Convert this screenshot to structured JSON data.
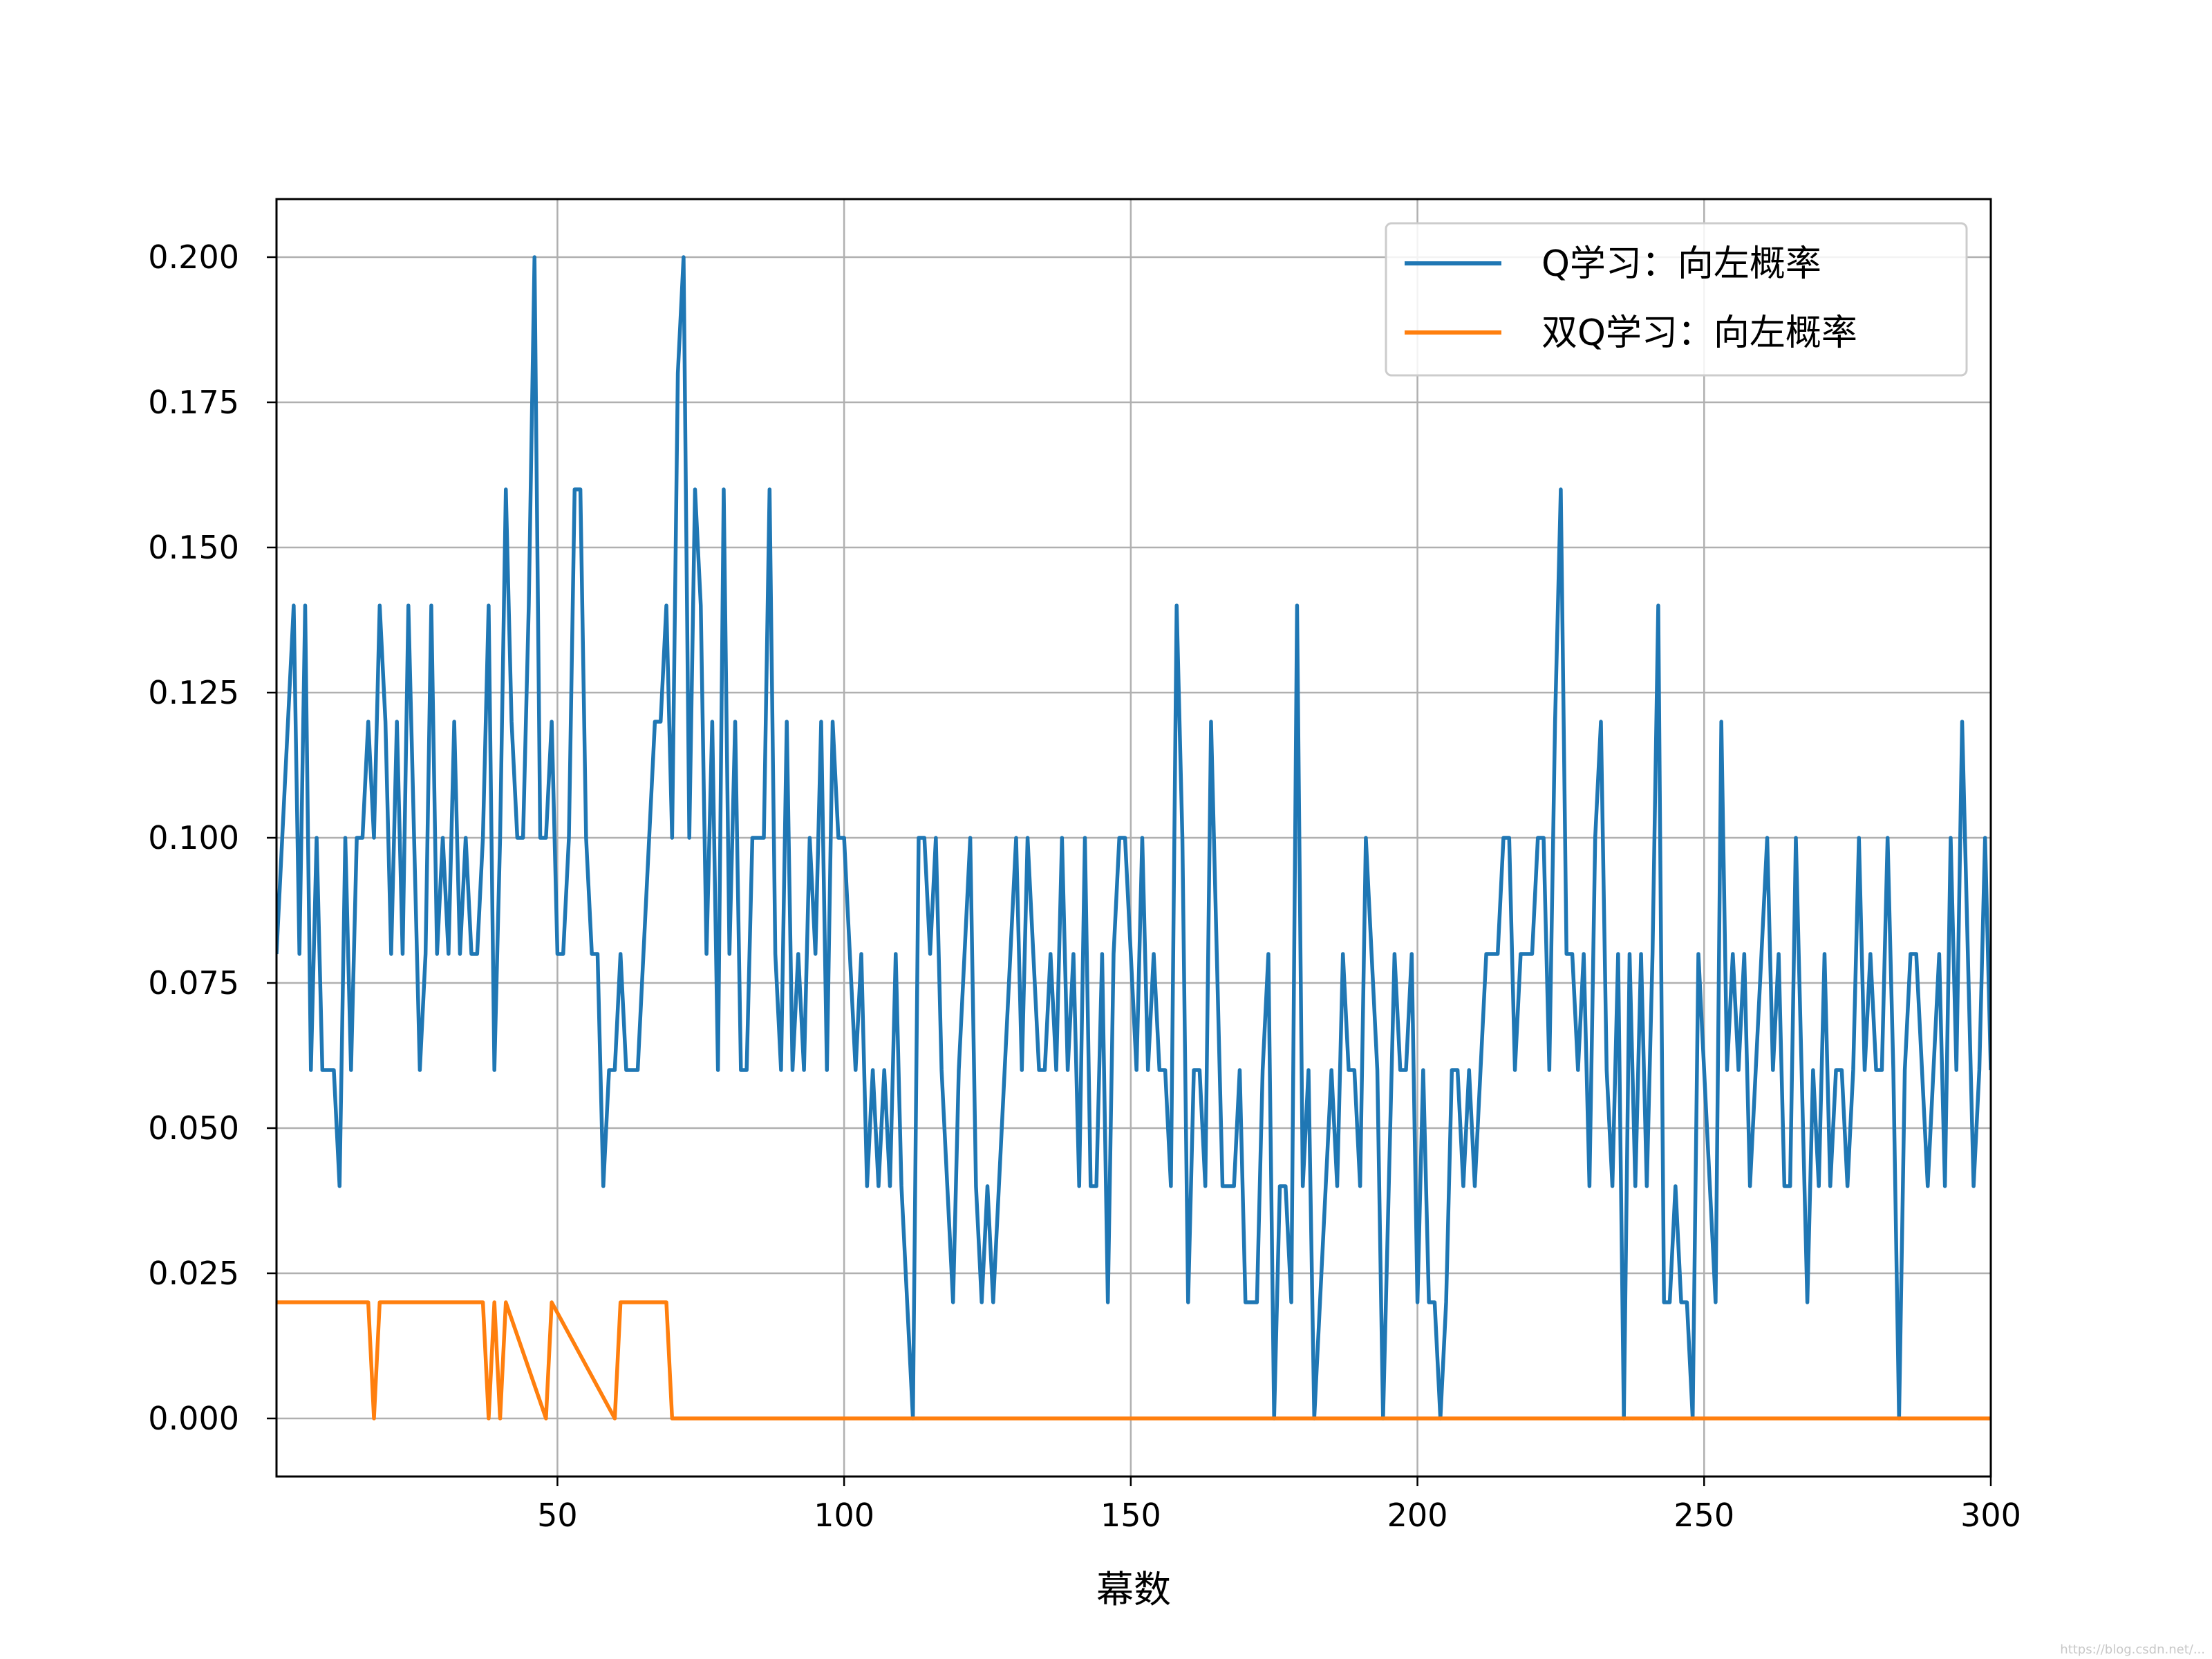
{
  "chart_data": {
    "type": "line",
    "title": "",
    "xlabel": "幕数",
    "ylabel": "",
    "xlim": [
      1,
      300
    ],
    "ylim": [
      -0.01,
      0.21
    ],
    "xticks": [
      50,
      100,
      150,
      200,
      250,
      300
    ],
    "xtick_labels": [
      "50",
      "100",
      "150",
      "200",
      "250",
      "300"
    ],
    "yticks": [
      0.0,
      0.025,
      0.05,
      0.075,
      0.1,
      0.125,
      0.15,
      0.175,
      0.2
    ],
    "ytick_labels": [
      "0.000",
      "0.025",
      "0.050",
      "0.075",
      "0.100",
      "0.125",
      "0.150",
      "0.175",
      "0.200"
    ],
    "grid": true,
    "legend_position": "top-right",
    "series": [
      {
        "name": "Q学习：向左概率",
        "color": "#1f77b4",
        "x": [
          1,
          2,
          3,
          4,
          5,
          6,
          7,
          8,
          9,
          10,
          11,
          12,
          13,
          14,
          15,
          16,
          17,
          18,
          19,
          20,
          21,
          22,
          23,
          24,
          25,
          26,
          27,
          28,
          29,
          30,
          31,
          32,
          33,
          34,
          35,
          36,
          37,
          38,
          39,
          40,
          41,
          42,
          43,
          44,
          45,
          46,
          47,
          48,
          49,
          50,
          51,
          52,
          53,
          54,
          55,
          56,
          57,
          58,
          59,
          60,
          61,
          62,
          63,
          64,
          65,
          66,
          67,
          68,
          69,
          70,
          71,
          72,
          73,
          74,
          75,
          76,
          77,
          78,
          79,
          80,
          81,
          82,
          83,
          84,
          85,
          86,
          87,
          88,
          89,
          90,
          91,
          92,
          93,
          94,
          95,
          96,
          97,
          98,
          99,
          100,
          101,
          102,
          103,
          104,
          105,
          106,
          107,
          108,
          109,
          110,
          111,
          112,
          113,
          114,
          115,
          116,
          117,
          118,
          119,
          120,
          121,
          122,
          123,
          124,
          125,
          126,
          127,
          128,
          129,
          130,
          131,
          132,
          133,
          134,
          135,
          136,
          137,
          138,
          139,
          140,
          141,
          142,
          143,
          144,
          145,
          146,
          147,
          148,
          149,
          150,
          151,
          152,
          153,
          154,
          155,
          156,
          157,
          158,
          159,
          160,
          161,
          162,
          163,
          164,
          165,
          166,
          167,
          168,
          169,
          170,
          171,
          172,
          173,
          174,
          175,
          176,
          177,
          178,
          179,
          180,
          181,
          182,
          183,
          184,
          185,
          186,
          187,
          188,
          189,
          190,
          191,
          192,
          193,
          194,
          195,
          196,
          197,
          198,
          199,
          200,
          201,
          202,
          203,
          204,
          205,
          206,
          207,
          208,
          209,
          210,
          211,
          212,
          213,
          214,
          215,
          216,
          217,
          218,
          219,
          220,
          221,
          222,
          223,
          224,
          225,
          226,
          227,
          228,
          229,
          230,
          231,
          232,
          233,
          234,
          235,
          236,
          237,
          238,
          239,
          240,
          241,
          242,
          243,
          244,
          245,
          246,
          247,
          248,
          249,
          250,
          251,
          252,
          253,
          254,
          255,
          256,
          257,
          258,
          259,
          260,
          261,
          262,
          263,
          264,
          265,
          266,
          267,
          268,
          269,
          270,
          271,
          272,
          273,
          274,
          275,
          276,
          277,
          278,
          279,
          280,
          281,
          282,
          283,
          284,
          285,
          286,
          287,
          288,
          289,
          290,
          291,
          292,
          293,
          294,
          295,
          296,
          297,
          298,
          299,
          300
        ],
        "values": [
          0.08,
          0.1,
          0.12,
          0.14,
          0.08,
          0.14,
          0.06,
          0.1,
          0.06,
          0.06,
          0.06,
          0.04,
          0.1,
          0.06,
          0.1,
          0.1,
          0.12,
          0.1,
          0.14,
          0.12,
          0.08,
          0.12,
          0.08,
          0.14,
          0.1,
          0.06,
          0.08,
          0.14,
          0.08,
          0.1,
          0.08,
          0.12,
          0.08,
          0.1,
          0.08,
          0.08,
          0.1,
          0.14,
          0.06,
          0.1,
          0.16,
          0.12,
          0.1,
          0.1,
          0.14,
          0.2,
          0.1,
          0.1,
          0.12,
          0.08,
          0.08,
          0.1,
          0.16,
          0.16,
          0.1,
          0.08,
          0.08,
          0.04,
          0.06,
          0.06,
          0.08,
          0.06,
          0.06,
          0.06,
          0.08,
          0.1,
          0.12,
          0.12,
          0.14,
          0.1,
          0.18,
          0.2,
          0.1,
          0.16,
          0.14,
          0.08,
          0.12,
          0.06,
          0.16,
          0.08,
          0.12,
          0.06,
          0.06,
          0.1,
          0.1,
          0.1,
          0.16,
          0.08,
          0.06,
          0.12,
          0.06,
          0.08,
          0.06,
          0.1,
          0.08,
          0.12,
          0.06,
          0.12,
          0.1,
          0.1,
          0.08,
          0.06,
          0.08,
          0.04,
          0.06,
          0.04,
          0.06,
          0.04,
          0.08,
          0.04,
          0.02,
          0.0,
          0.1,
          0.1,
          0.08,
          0.1,
          0.06,
          0.04,
          0.02,
          0.06,
          0.08,
          0.1,
          0.04,
          0.02,
          0.04,
          0.02,
          0.04,
          0.06,
          0.08,
          0.1,
          0.06,
          0.1,
          0.08,
          0.06,
          0.06,
          0.08,
          0.06,
          0.1,
          0.06,
          0.08,
          0.04,
          0.1,
          0.04,
          0.04,
          0.08,
          0.02,
          0.08,
          0.1,
          0.1,
          0.08,
          0.06,
          0.1,
          0.06,
          0.08,
          0.06,
          0.06,
          0.04,
          0.14,
          0.1,
          0.02,
          0.06,
          0.06,
          0.04,
          0.12,
          0.08,
          0.04,
          0.04,
          0.04,
          0.06,
          0.02,
          0.02,
          0.02,
          0.06,
          0.08,
          0.0,
          0.04,
          0.04,
          0.02,
          0.14,
          0.04,
          0.06,
          0.0,
          0.02,
          0.04,
          0.06,
          0.04,
          0.08,
          0.06,
          0.06,
          0.04,
          0.1,
          0.08,
          0.06,
          0.0,
          0.04,
          0.08,
          0.06,
          0.06,
          0.08,
          0.02,
          0.06,
          0.02,
          0.02,
          0.0,
          0.02,
          0.06,
          0.06,
          0.04,
          0.06,
          0.04,
          0.06,
          0.08,
          0.08,
          0.08,
          0.1,
          0.1,
          0.06,
          0.08,
          0.08,
          0.08,
          0.1,
          0.1,
          0.06,
          0.12,
          0.16,
          0.08,
          0.08,
          0.06,
          0.08,
          0.04,
          0.1,
          0.12,
          0.06,
          0.04,
          0.08,
          0.0,
          0.08,
          0.04,
          0.08,
          0.04,
          0.08,
          0.14,
          0.02,
          0.02,
          0.04,
          0.02,
          0.02,
          0.0,
          0.08,
          0.06,
          0.04,
          0.02,
          0.12,
          0.06,
          0.08,
          0.06,
          0.08,
          0.04,
          0.06,
          0.08,
          0.1,
          0.06,
          0.08,
          0.04,
          0.04,
          0.1,
          0.06,
          0.02,
          0.06,
          0.04,
          0.08,
          0.04,
          0.06,
          0.06,
          0.04,
          0.06,
          0.1,
          0.06,
          0.08,
          0.06,
          0.06,
          0.1,
          0.06,
          0.0,
          0.06,
          0.08,
          0.08,
          0.06,
          0.04,
          0.06,
          0.08,
          0.04,
          0.1,
          0.06,
          0.12,
          0.08,
          0.04,
          0.06,
          0.1,
          0.06
        ]
      },
      {
        "name": "双Q学习：向左概率",
        "color": "#ff7f0e",
        "x": [
          1,
          17,
          18,
          19,
          37,
          38,
          39,
          40,
          41,
          48,
          49,
          60,
          61,
          62,
          69,
          70,
          300
        ],
        "values": [
          0.02,
          0.02,
          0.0,
          0.02,
          0.02,
          0.0,
          0.02,
          0.0,
          0.02,
          0.0,
          0.02,
          0.0,
          0.02,
          0.02,
          0.02,
          0.0,
          0.0
        ]
      }
    ],
    "watermark": "https://blog.csdn.net/..."
  }
}
